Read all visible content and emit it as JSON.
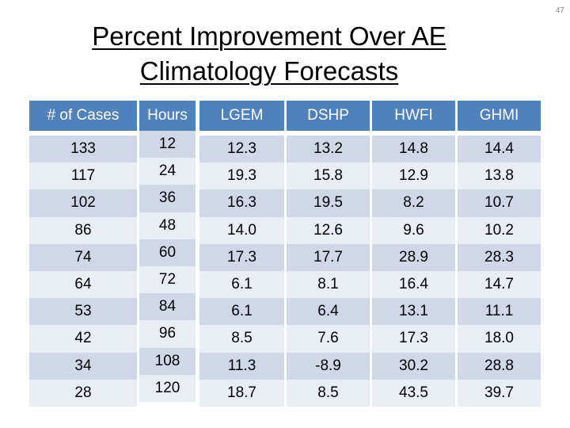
{
  "slide": {
    "number": "47",
    "title_line1": "Percent Improvement Over AE",
    "title_line2": "Climatology Forecasts"
  },
  "colors": {
    "header_fill": "#4f81bd",
    "header_text": "#ffffff",
    "row_band_dark": "#d0d8e8",
    "row_band_light": "#e9edf4"
  },
  "table": {
    "headers": [
      "# of Cases",
      "Hours",
      "LGEM",
      "DSHP",
      "HWFI",
      "GHMI"
    ],
    "rows": [
      [
        "133",
        "12",
        "12.3",
        "13.2",
        "14.8",
        "14.4"
      ],
      [
        "117",
        "24",
        "19.3",
        "15.8",
        "12.9",
        "13.8"
      ],
      [
        "102",
        "36",
        "16.3",
        "19.5",
        "8.2",
        "10.7"
      ],
      [
        "86",
        "48",
        "14.0",
        "12.6",
        "9.6",
        "10.2"
      ],
      [
        "74",
        "60",
        "17.3",
        "17.7",
        "28.9",
        "28.3"
      ],
      [
        "64",
        "72",
        "6.1",
        "8.1",
        "16.4",
        "14.7"
      ],
      [
        "53",
        "84",
        "6.1",
        "6.4",
        "13.1",
        "11.1"
      ],
      [
        "42",
        "96",
        "8.5",
        "7.6",
        "17.3",
        "18.0"
      ],
      [
        "34",
        "108",
        "11.3",
        "-8.9",
        "30.2",
        "28.8"
      ],
      [
        "28",
        "120",
        "18.7",
        "8.5",
        "43.5",
        "39.7"
      ]
    ]
  }
}
